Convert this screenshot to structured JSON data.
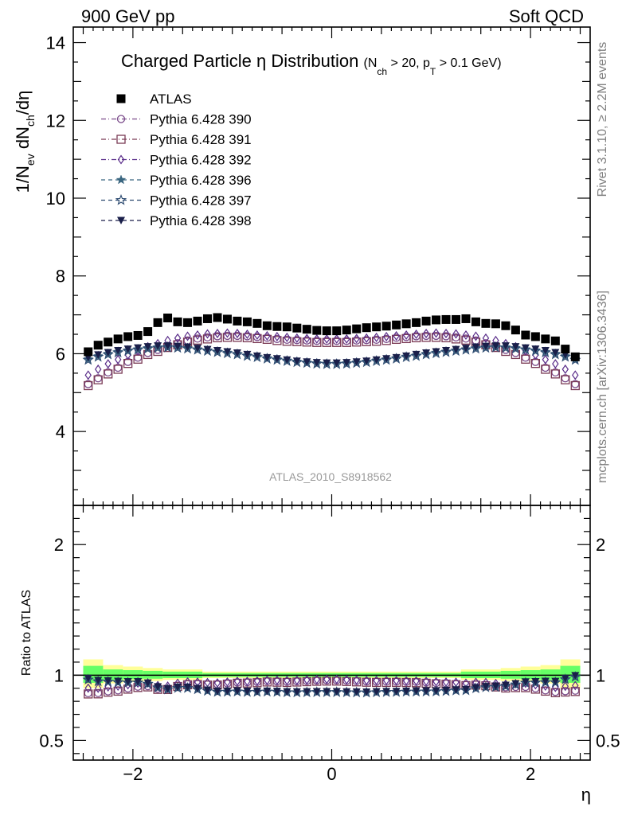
{
  "header": {
    "left": "900 GeV pp",
    "right": "Soft QCD"
  },
  "title": {
    "main": "Charged Particle η Distribution",
    "cuts": "(N",
    "cuts_sub1": "ch",
    "cuts_mid": " > 20, p",
    "cuts_sub2": "T",
    "cuts_end": " > 0.1 GeV)"
  },
  "side_labels": {
    "rivet": "Rivet 3.1.10, ≥ 2.2M events",
    "mcplots": "mcplots.cern.ch [arXiv:1306.3436]"
  },
  "watermark": "ATLAS_2010_S8918562",
  "axes": {
    "ylabel_main": "1/N",
    "ylabel_sub1": "ev",
    "ylabel_mid": " dN",
    "ylabel_sub2": "ch",
    "ylabel_end": "/dη",
    "ylabel_ratio": "Ratio to ATLAS",
    "xlabel": "η"
  },
  "colors": {
    "data": "#000000",
    "p390": "#7a4a8a",
    "p391": "#7a3a55",
    "p392": "#5a2d8a",
    "p396": "#3a6680",
    "p397": "#2c4a70",
    "p398": "#1a1f4a",
    "band_outer": "#ffff99",
    "band_inner": "#66ff66"
  },
  "chart_data": {
    "type": "scatter",
    "x": [
      -2.45,
      -2.35,
      -2.25,
      -2.15,
      -2.05,
      -1.95,
      -1.85,
      -1.75,
      -1.65,
      -1.55,
      -1.45,
      -1.35,
      -1.25,
      -1.15,
      -1.05,
      -0.95,
      -0.85,
      -0.75,
      -0.65,
      -0.55,
      -0.45,
      -0.35,
      -0.25,
      -0.15,
      -0.05,
      0.05,
      0.15,
      0.25,
      0.35,
      0.45,
      0.55,
      0.65,
      0.75,
      0.85,
      0.95,
      1.05,
      1.15,
      1.25,
      1.35,
      1.45,
      1.55,
      1.65,
      1.75,
      1.85,
      1.95,
      2.05,
      2.15,
      2.25,
      2.35,
      2.45
    ],
    "xlim": [
      -2.6,
      2.6
    ],
    "ylim_main": [
      2.1,
      14.4
    ],
    "ylim_ratio": [
      0.35,
      2.3
    ],
    "xticks": [
      -2,
      0,
      2
    ],
    "xtick_labels": [
      "−2",
      "0",
      "2"
    ],
    "yticks_main": [
      4,
      6,
      8,
      10,
      12,
      14
    ],
    "yticks_ratio": [
      0.5,
      1,
      2
    ],
    "ytick_labels_ratio": [
      "0.5",
      "1",
      "2"
    ],
    "series": [
      {
        "name": "ATLAS",
        "marker": "square-filled",
        "color_key": "data",
        "values": [
          6.05,
          6.22,
          6.3,
          6.38,
          6.44,
          6.47,
          6.57,
          6.8,
          6.92,
          6.82,
          6.8,
          6.84,
          6.9,
          6.93,
          6.89,
          6.84,
          6.82,
          6.78,
          6.72,
          6.7,
          6.69,
          6.66,
          6.63,
          6.6,
          6.59,
          6.59,
          6.61,
          6.64,
          6.67,
          6.69,
          6.71,
          6.74,
          6.77,
          6.8,
          6.84,
          6.87,
          6.88,
          6.88,
          6.9,
          6.82,
          6.78,
          6.77,
          6.72,
          6.61,
          6.48,
          6.44,
          6.38,
          6.33,
          6.12,
          5.92
        ]
      },
      {
        "name": "Pythia 6.428 390",
        "marker": "circle-open",
        "color_key": "p390",
        "values": [
          5.22,
          5.37,
          5.52,
          5.64,
          5.79,
          5.9,
          6.02,
          6.1,
          6.2,
          6.27,
          6.34,
          6.39,
          6.42,
          6.45,
          6.46,
          6.46,
          6.45,
          6.43,
          6.41,
          6.38,
          6.36,
          6.35,
          6.34,
          6.33,
          6.33,
          6.33,
          6.33,
          6.34,
          6.35,
          6.36,
          6.38,
          6.41,
          6.43,
          6.45,
          6.46,
          6.46,
          6.45,
          6.42,
          6.39,
          6.34,
          6.27,
          6.2,
          6.1,
          6.02,
          5.9,
          5.79,
          5.64,
          5.52,
          5.37,
          5.22
        ]
      },
      {
        "name": "Pythia 6.428 391",
        "marker": "square-open",
        "color_key": "p391",
        "values": [
          5.18,
          5.33,
          5.48,
          5.6,
          5.75,
          5.86,
          5.98,
          6.06,
          6.16,
          6.23,
          6.3,
          6.35,
          6.38,
          6.41,
          6.42,
          6.42,
          6.41,
          6.39,
          6.37,
          6.34,
          6.32,
          6.31,
          6.3,
          6.29,
          6.29,
          6.29,
          6.29,
          6.3,
          6.31,
          6.32,
          6.34,
          6.37,
          6.39,
          6.41,
          6.42,
          6.42,
          6.41,
          6.38,
          6.35,
          6.3,
          6.23,
          6.16,
          6.06,
          5.98,
          5.86,
          5.75,
          5.6,
          5.48,
          5.33,
          5.18
        ]
      },
      {
        "name": "Pythia 6.428 392",
        "marker": "diamond-open",
        "color_key": "p392",
        "values": [
          5.45,
          5.6,
          5.74,
          5.85,
          5.97,
          6.08,
          6.18,
          6.26,
          6.34,
          6.4,
          6.45,
          6.48,
          6.51,
          6.52,
          6.53,
          6.52,
          6.5,
          6.48,
          6.46,
          6.44,
          6.42,
          6.4,
          6.39,
          6.38,
          6.38,
          6.38,
          6.38,
          6.39,
          6.4,
          6.42,
          6.44,
          6.46,
          6.48,
          6.5,
          6.52,
          6.53,
          6.52,
          6.51,
          6.48,
          6.45,
          6.4,
          6.34,
          6.26,
          6.18,
          6.08,
          5.97,
          5.85,
          5.74,
          5.6,
          5.45
        ]
      },
      {
        "name": "Pythia 6.428 396",
        "marker": "star-filled",
        "color_key": "p396",
        "values": [
          5.86,
          5.94,
          6.0,
          6.05,
          6.09,
          6.12,
          6.15,
          6.17,
          6.18,
          6.17,
          6.15,
          6.12,
          6.09,
          6.06,
          6.03,
          6.0,
          5.96,
          5.93,
          5.89,
          5.86,
          5.83,
          5.8,
          5.78,
          5.76,
          5.75,
          5.75,
          5.76,
          5.78,
          5.8,
          5.83,
          5.86,
          5.89,
          5.93,
          5.96,
          6.0,
          6.03,
          6.06,
          6.09,
          6.12,
          6.15,
          6.17,
          6.18,
          6.17,
          6.15,
          6.12,
          6.09,
          6.05,
          6.0,
          5.94,
          5.86
        ]
      },
      {
        "name": "Pythia 6.428 397",
        "marker": "star-open",
        "color_key": "p397",
        "values": [
          5.84,
          5.92,
          5.98,
          6.03,
          6.07,
          6.1,
          6.13,
          6.15,
          6.16,
          6.15,
          6.13,
          6.1,
          6.07,
          6.04,
          6.01,
          5.98,
          5.94,
          5.91,
          5.87,
          5.84,
          5.81,
          5.78,
          5.76,
          5.74,
          5.73,
          5.73,
          5.74,
          5.76,
          5.78,
          5.81,
          5.84,
          5.87,
          5.91,
          5.94,
          5.98,
          6.01,
          6.04,
          6.07,
          6.1,
          6.13,
          6.15,
          6.16,
          6.15,
          6.13,
          6.1,
          6.07,
          6.03,
          5.98,
          5.92,
          5.84
        ]
      },
      {
        "name": "Pythia 6.428 398",
        "marker": "triangle-down-filled",
        "color_key": "p398",
        "values": [
          5.9,
          5.97,
          6.03,
          6.08,
          6.12,
          6.15,
          6.18,
          6.2,
          6.2,
          6.19,
          6.17,
          6.14,
          6.11,
          6.08,
          6.05,
          6.02,
          5.98,
          5.94,
          5.9,
          5.87,
          5.84,
          5.81,
          5.79,
          5.77,
          5.76,
          5.76,
          5.77,
          5.79,
          5.81,
          5.84,
          5.87,
          5.9,
          5.94,
          5.98,
          6.02,
          6.05,
          6.08,
          6.11,
          6.14,
          6.17,
          6.19,
          6.2,
          6.2,
          6.18,
          6.15,
          6.12,
          6.08,
          6.03,
          5.97,
          5.9
        ]
      }
    ],
    "ratio_band": {
      "x_edges": [
        -2.5,
        -2.3,
        -2.1,
        -1.9,
        -1.7,
        -1.3,
        1.3,
        1.7,
        1.9,
        2.1,
        2.3,
        2.5
      ],
      "outer": [
        0.22,
        0.14,
        0.12,
        0.1,
        0.08,
        0.05,
        0.08,
        0.1,
        0.12,
        0.14,
        0.22
      ],
      "inner": [
        0.13,
        0.08,
        0.07,
        0.06,
        0.05,
        0.03,
        0.05,
        0.06,
        0.07,
        0.08,
        0.13
      ]
    },
    "legend_position": "top-left"
  }
}
